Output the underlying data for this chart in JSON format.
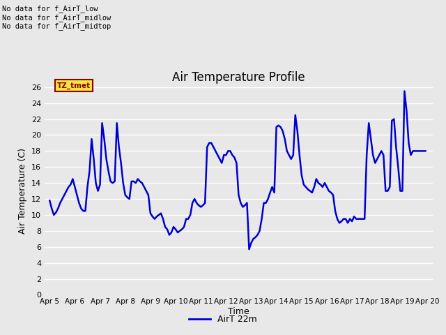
{
  "title": "Air Temperature Profile",
  "xlabel": "Time",
  "ylabel": "Air Temperature (C)",
  "ylim": [
    0,
    26
  ],
  "yticks": [
    0,
    2,
    4,
    6,
    8,
    10,
    12,
    14,
    16,
    18,
    20,
    22,
    24,
    26
  ],
  "line_color": "#0000cc",
  "line_width": 1.8,
  "fig_bg_color": "#e8e8e8",
  "plot_bg_color": "#e8e8e8",
  "grid_color": "#ffffff",
  "legend_label": "AirT 22m",
  "annotation_lines": [
    "No data for f_AirT_low",
    "No data for f_AirT_midlow",
    "No data for f_AirT_midtop"
  ],
  "tz_label": "TZ_tmet",
  "x_tick_labels": [
    "Apr 5",
    "Apr 6",
    "Apr 7",
    "Apr 8",
    "Apr 9",
    "Apr 10",
    "Apr 11",
    "Apr 12",
    "Apr 13",
    "Apr 14",
    "Apr 15",
    "Apr 16",
    "Apr 17",
    "Apr 18",
    "Apr 19",
    "Apr 20"
  ],
  "x_tick_positions": [
    0,
    1,
    2,
    3,
    4,
    5,
    6,
    7,
    8,
    9,
    10,
    11,
    12,
    13,
    14,
    15
  ],
  "xlim": [
    -0.2,
    15.2
  ],
  "x_values": [
    0.0,
    0.083,
    0.167,
    0.25,
    0.333,
    0.417,
    0.5,
    0.583,
    0.667,
    0.75,
    0.833,
    0.917,
    1.0,
    1.083,
    1.167,
    1.25,
    1.333,
    1.417,
    1.5,
    1.583,
    1.667,
    1.75,
    1.833,
    1.917,
    2.0,
    2.083,
    2.167,
    2.25,
    2.333,
    2.417,
    2.5,
    2.583,
    2.667,
    2.75,
    2.833,
    2.917,
    3.0,
    3.083,
    3.167,
    3.25,
    3.333,
    3.417,
    3.5,
    3.583,
    3.667,
    3.75,
    3.833,
    3.917,
    4.0,
    4.083,
    4.167,
    4.25,
    4.333,
    4.417,
    4.5,
    4.583,
    4.667,
    4.75,
    4.833,
    4.917,
    5.0,
    5.083,
    5.167,
    5.25,
    5.333,
    5.417,
    5.5,
    5.583,
    5.667,
    5.75,
    5.833,
    5.917,
    6.0,
    6.083,
    6.167,
    6.25,
    6.333,
    6.417,
    6.5,
    6.583,
    6.667,
    6.75,
    6.833,
    6.917,
    7.0,
    7.083,
    7.167,
    7.25,
    7.333,
    7.417,
    7.5,
    7.583,
    7.667,
    7.75,
    7.833,
    7.917,
    8.0,
    8.083,
    8.167,
    8.25,
    8.333,
    8.417,
    8.5,
    8.583,
    8.667,
    8.75,
    8.833,
    8.917,
    9.0,
    9.083,
    9.167,
    9.25,
    9.333,
    9.417,
    9.5,
    9.583,
    9.667,
    9.75,
    9.833,
    9.917,
    10.0,
    10.083,
    10.167,
    10.25,
    10.333,
    10.417,
    10.5,
    10.583,
    10.667,
    10.75,
    10.833,
    10.917,
    11.0,
    11.083,
    11.167,
    11.25,
    11.333,
    11.417,
    11.5,
    11.583,
    11.667,
    11.75,
    11.833,
    11.917,
    12.0,
    12.083,
    12.167,
    12.25,
    12.333,
    12.417,
    12.5,
    12.583,
    12.667,
    12.75,
    12.833,
    12.917,
    13.0,
    13.083,
    13.167,
    13.25,
    13.333,
    13.417,
    13.5,
    13.583,
    13.667,
    13.75,
    13.833,
    13.917,
    14.0,
    14.083,
    14.167,
    14.25,
    14.333,
    14.417,
    14.5,
    14.583,
    14.667,
    14.75,
    14.833,
    14.917
  ],
  "y_values": [
    11.8,
    10.8,
    10.0,
    10.3,
    10.8,
    11.5,
    12.0,
    12.5,
    13.0,
    13.5,
    13.8,
    14.5,
    13.5,
    12.5,
    11.5,
    10.8,
    10.5,
    10.5,
    13.5,
    15.5,
    19.5,
    17.0,
    14.0,
    13.0,
    13.8,
    21.5,
    19.5,
    17.0,
    15.5,
    14.2,
    14.0,
    14.2,
    21.5,
    18.5,
    16.5,
    14.0,
    12.5,
    12.2,
    12.0,
    14.2,
    14.2,
    14.0,
    14.5,
    14.2,
    14.0,
    13.5,
    13.0,
    12.5,
    10.2,
    9.8,
    9.5,
    9.8,
    10.0,
    10.2,
    9.5,
    8.5,
    8.2,
    7.5,
    7.8,
    8.5,
    8.2,
    7.8,
    8.0,
    8.2,
    8.5,
    9.5,
    9.5,
    10.0,
    11.5,
    12.0,
    11.5,
    11.2,
    11.0,
    11.2,
    11.5,
    18.5,
    19.0,
    19.0,
    18.5,
    18.0,
    17.5,
    17.0,
    16.5,
    17.5,
    17.5,
    18.0,
    18.0,
    17.5,
    17.2,
    16.5,
    12.5,
    11.5,
    11.0,
    11.2,
    11.5,
    5.7,
    6.5,
    7.0,
    7.2,
    7.5,
    8.0,
    9.5,
    11.5,
    11.5,
    12.0,
    12.8,
    13.5,
    12.8,
    21.0,
    21.2,
    21.0,
    20.5,
    19.5,
    18.0,
    17.5,
    17.0,
    17.5,
    22.5,
    20.5,
    17.5,
    15.0,
    13.8,
    13.5,
    13.2,
    13.0,
    12.8,
    13.5,
    14.5,
    14.0,
    13.8,
    13.5,
    14.0,
    13.5,
    13.0,
    12.8,
    12.5,
    10.5,
    9.5,
    9.0,
    9.2,
    9.5,
    9.5,
    9.0,
    9.5,
    9.2,
    9.8,
    9.5,
    9.5,
    9.5,
    9.5,
    9.5,
    17.5,
    21.5,
    19.5,
    17.5,
    16.5,
    17.0,
    17.5,
    18.0,
    17.5,
    13.0,
    13.0,
    13.5,
    21.8,
    22.0,
    18.5,
    16.0,
    13.0,
    13.0,
    25.5,
    23.0,
    19.0,
    17.5,
    18.0,
    18.0,
    18.0,
    18.0,
    18.0,
    18.0,
    18.0
  ]
}
